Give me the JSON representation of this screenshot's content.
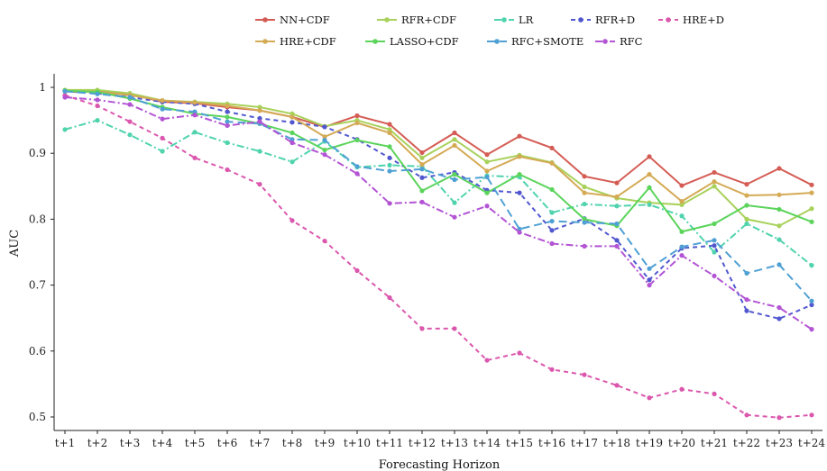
{
  "chart_data": {
    "type": "line",
    "xlabel": "Forecasting Horizon",
    "ylabel": "AUC",
    "x": [
      "t+1",
      "t+2",
      "t+3",
      "t+4",
      "t+5",
      "t+6",
      "t+7",
      "t+8",
      "t+9",
      "t+10",
      "t+11",
      "t+12",
      "t+13",
      "t+14",
      "t+15",
      "t+16",
      "t+17",
      "t+18",
      "t+19",
      "t+20",
      "t+21",
      "t+22",
      "t+23",
      "t+24"
    ],
    "ylim": [
      0.48,
      1.02
    ],
    "yticks": [
      0.5,
      0.6,
      0.7,
      0.8,
      0.9,
      1
    ],
    "ytick_labels": [
      "0.5",
      "0.6",
      "0.7",
      "0.8",
      "0.9",
      "1"
    ],
    "legend_position": "top",
    "series": [
      {
        "name": "NN+CDF",
        "color": "#d45c54",
        "dash": "solid",
        "values": [
          0.995,
          0.995,
          0.99,
          0.978,
          0.976,
          0.97,
          0.965,
          0.955,
          0.94,
          0.957,
          0.944,
          0.901,
          0.931,
          0.898,
          0.926,
          0.908,
          0.865,
          0.855,
          0.895,
          0.851,
          0.871,
          0.853,
          0.877,
          0.852
        ]
      },
      {
        "name": "RFR+CDF",
        "color": "#a8d15b",
        "dash": "solid",
        "values": [
          0.996,
          0.996,
          0.991,
          0.98,
          0.978,
          0.975,
          0.97,
          0.96,
          0.941,
          0.95,
          0.936,
          0.893,
          0.921,
          0.887,
          0.897,
          0.886,
          0.849,
          0.832,
          0.825,
          0.822,
          0.85,
          0.8,
          0.79,
          0.816
        ]
      },
      {
        "name": "LR",
        "color": "#4fd3ad",
        "dash": "dashdot",
        "values": [
          0.936,
          0.95,
          0.928,
          0.903,
          0.932,
          0.916,
          0.903,
          0.887,
          0.918,
          0.879,
          0.882,
          0.88,
          0.825,
          0.866,
          0.864,
          0.81,
          0.823,
          0.82,
          0.822,
          0.805,
          0.75,
          0.793,
          0.769,
          0.73
        ]
      },
      {
        "name": "RFR+D",
        "color": "#5158cf",
        "dash": "dashed",
        "values": [
          0.994,
          0.991,
          0.985,
          0.978,
          0.975,
          0.963,
          0.953,
          0.947,
          0.94,
          0.921,
          0.893,
          0.863,
          0.871,
          0.844,
          0.84,
          0.783,
          0.801,
          0.768,
          0.708,
          0.756,
          0.76,
          0.661,
          0.649,
          0.67
        ]
      },
      {
        "name": "HRE+D",
        "color": "#db57ad",
        "dash": "dashed",
        "values": [
          0.988,
          0.972,
          0.948,
          0.923,
          0.893,
          0.875,
          0.853,
          0.798,
          0.767,
          0.722,
          0.681,
          0.634,
          0.634,
          0.586,
          0.597,
          0.572,
          0.564,
          0.548,
          0.529,
          0.542,
          0.535,
          0.503,
          0.499,
          0.503
        ]
      },
      {
        "name": "HRE+CDF",
        "color": "#d4aa55",
        "dash": "solid",
        "values": [
          0.994,
          0.993,
          0.988,
          0.98,
          0.977,
          0.972,
          0.965,
          0.955,
          0.925,
          0.946,
          0.931,
          0.883,
          0.912,
          0.873,
          0.895,
          0.885,
          0.84,
          0.834,
          0.868,
          0.827,
          0.857,
          0.836,
          0.837,
          0.84
        ]
      },
      {
        "name": "LASSO+CDF",
        "color": "#5bd45b",
        "dash": "solid",
        "values": [
          0.995,
          0.993,
          0.983,
          0.97,
          0.96,
          0.955,
          0.945,
          0.931,
          0.905,
          0.92,
          0.91,
          0.843,
          0.868,
          0.84,
          0.868,
          0.845,
          0.8,
          0.79,
          0.848,
          0.781,
          0.793,
          0.821,
          0.815,
          0.796
        ]
      },
      {
        "name": "RFC+SMOTE",
        "color": "#4fa0d4",
        "dash": "longdash",
        "values": [
          0.994,
          0.99,
          0.985,
          0.967,
          0.963,
          0.948,
          0.945,
          0.921,
          0.92,
          0.88,
          0.873,
          0.876,
          0.86,
          0.864,
          0.785,
          0.797,
          0.795,
          0.793,
          0.725,
          0.758,
          0.768,
          0.718,
          0.731,
          0.676
        ]
      },
      {
        "name": "RFC",
        "color": "#b354d4",
        "dash": "dashdot",
        "values": [
          0.985,
          0.981,
          0.974,
          0.952,
          0.958,
          0.942,
          0.948,
          0.916,
          0.898,
          0.869,
          0.824,
          0.826,
          0.803,
          0.82,
          0.78,
          0.763,
          0.759,
          0.759,
          0.7,
          0.745,
          0.714,
          0.678,
          0.666,
          0.633
        ]
      }
    ]
  }
}
